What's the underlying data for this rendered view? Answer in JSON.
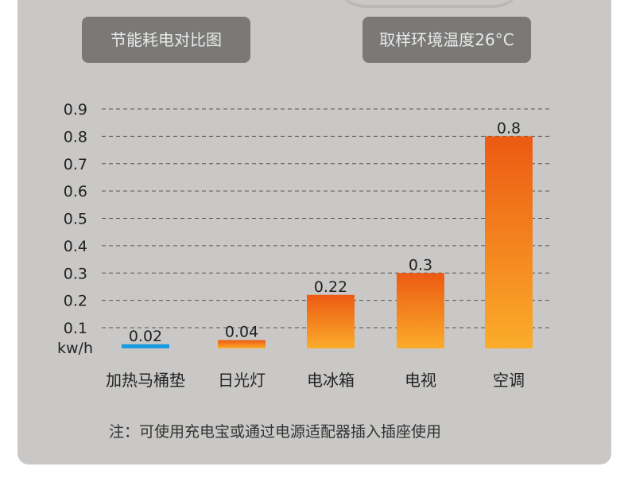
{
  "header": {
    "chart_title": "节能耗电对比图",
    "sampling_temp": "取样环境温度26°C"
  },
  "note": "注：可使用充电宝或通过电源适配器插入插座使用",
  "colors": {
    "panel_bg": "#c9c8c7",
    "pill_bg": "#7a7977",
    "bar_top": "#ec5a13",
    "bar_bottom": "#fbac2a",
    "highlight_bar": "#1a9be0",
    "gridline": "#555555"
  },
  "chart_data": {
    "type": "bar",
    "unit": "kw/h",
    "categories": [
      "加热马桶垫",
      "日光灯",
      "电冰箱",
      "电视",
      "空调"
    ],
    "values": [
      0.02,
      0.04,
      0.22,
      0.3,
      0.8
    ],
    "value_labels": [
      "0.02",
      "0.04",
      "0.22",
      "0.3",
      "0.8"
    ],
    "yticks": [
      "0.1",
      "0.2",
      "0.3",
      "0.4",
      "0.5",
      "0.6",
      "0.7",
      "0.8",
      "0.9"
    ],
    "ylim": [
      0,
      0.9
    ],
    "grid": true,
    "highlight_index": 0
  }
}
